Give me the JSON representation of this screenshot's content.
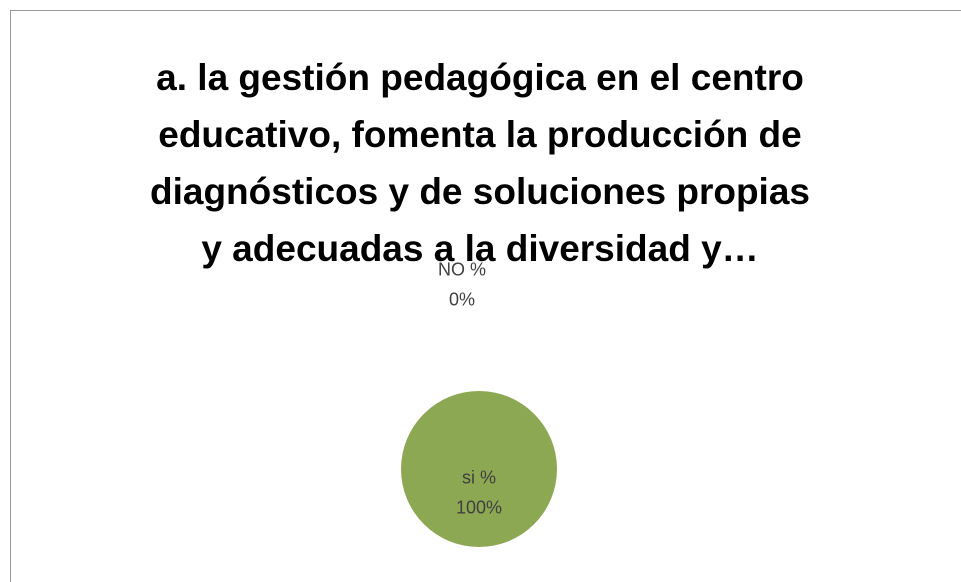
{
  "chart_data": {
    "type": "pie",
    "title": [
      "a.  la gestión pedagógica en el centro",
      "educativo, fomenta la producción de",
      "diagnósticos y de soluciones propias",
      "y adecuadas a la diversidad  y…"
    ],
    "categories": [
      "NO %",
      "si %"
    ],
    "values": [
      0,
      100
    ],
    "value_labels": [
      "0%",
      "100%"
    ],
    "colors": [
      "#4f81bd",
      "#8da853"
    ]
  }
}
